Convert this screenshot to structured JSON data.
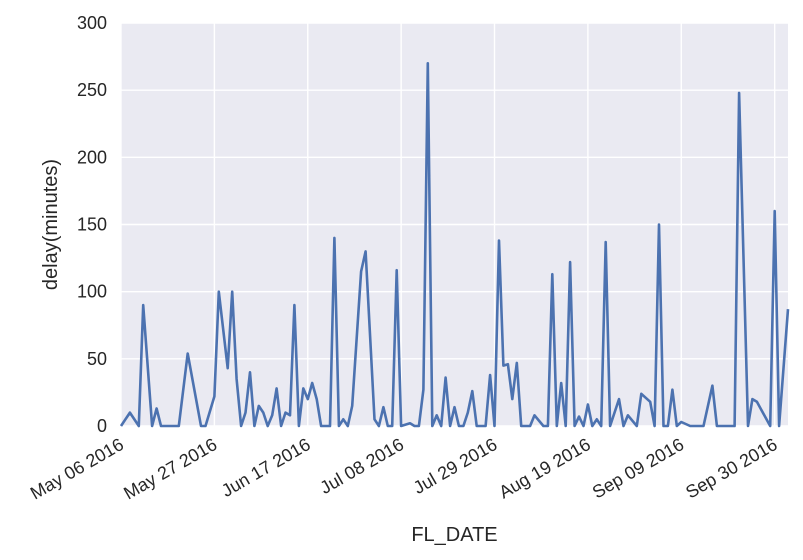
{
  "chart_data": {
    "type": "line",
    "title": "",
    "xlabel": "FL_DATE",
    "ylabel": "delay(minutes)",
    "x_is_date": true,
    "xlim": [
      "2016-05-06",
      "2016-10-03"
    ],
    "ylim": [
      0,
      300
    ],
    "grid": true,
    "colors": {
      "background": "#EAEAF2",
      "grid": "#FFFFFF",
      "line": "#4C72B0",
      "text": "#262626"
    },
    "yticks": [
      0,
      50,
      100,
      150,
      200,
      250,
      300
    ],
    "xticks": [
      {
        "date": "2016-05-06",
        "label": "May 06 2016"
      },
      {
        "date": "2016-05-27",
        "label": "May 27 2016"
      },
      {
        "date": "2016-06-17",
        "label": "Jun 17 2016"
      },
      {
        "date": "2016-07-08",
        "label": "Jul 08 2016"
      },
      {
        "date": "2016-07-29",
        "label": "Jul 29 2016"
      },
      {
        "date": "2016-08-19",
        "label": "Aug 19 2016"
      },
      {
        "date": "2016-09-09",
        "label": "Sep 09 2016"
      },
      {
        "date": "2016-09-30",
        "label": "Sep 30 2016"
      }
    ],
    "series": [
      {
        "x": [
          "2016-05-06",
          "2016-05-08",
          "2016-05-10",
          "2016-05-11",
          "2016-05-13",
          "2016-05-14",
          "2016-05-15",
          "2016-05-17",
          "2016-05-18",
          "2016-05-19",
          "2016-05-21",
          "2016-05-24",
          "2016-05-25",
          "2016-05-27",
          "2016-05-28",
          "2016-05-30",
          "2016-05-31",
          "2016-06-01",
          "2016-06-02",
          "2016-06-03",
          "2016-06-04",
          "2016-06-05",
          "2016-06-06",
          "2016-06-07",
          "2016-06-08",
          "2016-06-09",
          "2016-06-10",
          "2016-06-11",
          "2016-06-12",
          "2016-06-13",
          "2016-06-14",
          "2016-06-15",
          "2016-06-16",
          "2016-06-17",
          "2016-06-18",
          "2016-06-19",
          "2016-06-20",
          "2016-06-21",
          "2016-06-22",
          "2016-06-23",
          "2016-06-24",
          "2016-06-25",
          "2016-06-26",
          "2016-06-27",
          "2016-06-29",
          "2016-06-30",
          "2016-07-02",
          "2016-07-03",
          "2016-07-04",
          "2016-07-05",
          "2016-07-06",
          "2016-07-07",
          "2016-07-08",
          "2016-07-10",
          "2016-07-11",
          "2016-07-12",
          "2016-07-13",
          "2016-07-14",
          "2016-07-15",
          "2016-07-16",
          "2016-07-17",
          "2016-07-18",
          "2016-07-19",
          "2016-07-20",
          "2016-07-21",
          "2016-07-22",
          "2016-07-23",
          "2016-07-24",
          "2016-07-25",
          "2016-07-27",
          "2016-07-28",
          "2016-07-29",
          "2016-07-30",
          "2016-07-31",
          "2016-08-01",
          "2016-08-02",
          "2016-08-03",
          "2016-08-04",
          "2016-08-06",
          "2016-08-07",
          "2016-08-09",
          "2016-08-10",
          "2016-08-11",
          "2016-08-12",
          "2016-08-13",
          "2016-08-14",
          "2016-08-15",
          "2016-08-16",
          "2016-08-17",
          "2016-08-18",
          "2016-08-19",
          "2016-08-20",
          "2016-08-21",
          "2016-08-22",
          "2016-08-23",
          "2016-08-24",
          "2016-08-26",
          "2016-08-27",
          "2016-08-28",
          "2016-08-30",
          "2016-08-31",
          "2016-09-02",
          "2016-09-03",
          "2016-09-04",
          "2016-09-05",
          "2016-09-06",
          "2016-09-07",
          "2016-09-08",
          "2016-09-09",
          "2016-09-11",
          "2016-09-13",
          "2016-09-14",
          "2016-09-16",
          "2016-09-17",
          "2016-09-19",
          "2016-09-20",
          "2016-09-21",
          "2016-09-22",
          "2016-09-24",
          "2016-09-25",
          "2016-09-26",
          "2016-09-29",
          "2016-09-30",
          "2016-10-01",
          "2016-10-03"
        ],
        "y": [
          0,
          10,
          0,
          90,
          0,
          13,
          0,
          0,
          0,
          0,
          54,
          0,
          0,
          22,
          100,
          43,
          100,
          35,
          0,
          10,
          40,
          0,
          15,
          10,
          0,
          8,
          28,
          0,
          10,
          8,
          90,
          0,
          28,
          20,
          32,
          20,
          0,
          0,
          0,
          140,
          0,
          5,
          0,
          15,
          115,
          130,
          5,
          0,
          14,
          0,
          0,
          116,
          0,
          2,
          0,
          0,
          27,
          270,
          0,
          8,
          0,
          36,
          0,
          14,
          0,
          0,
          10,
          26,
          0,
          0,
          38,
          0,
          138,
          45,
          46,
          20,
          47,
          0,
          0,
          8,
          0,
          0,
          113,
          0,
          32,
          0,
          122,
          0,
          7,
          0,
          16,
          0,
          5,
          0,
          137,
          0,
          20,
          0,
          8,
          0,
          24,
          18,
          0,
          150,
          0,
          0,
          27,
          0,
          3,
          0,
          0,
          0,
          30,
          0,
          0,
          0,
          0,
          248,
          0,
          20,
          18,
          0,
          160,
          0,
          87
        ]
      }
    ]
  }
}
